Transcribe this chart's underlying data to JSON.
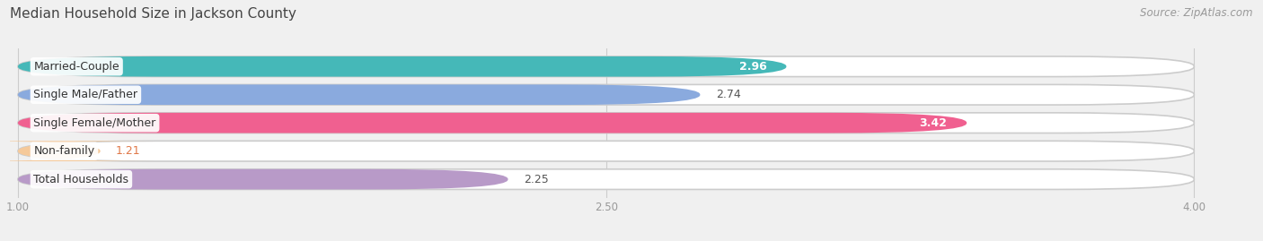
{
  "title": "Median Household Size in Jackson County",
  "source": "Source: ZipAtlas.com",
  "categories": [
    "Married-Couple",
    "Single Male/Father",
    "Single Female/Mother",
    "Non-family",
    "Total Households"
  ],
  "values": [
    2.96,
    2.74,
    3.42,
    1.21,
    2.25
  ],
  "bar_colors": [
    "#45b8b8",
    "#8aaade",
    "#f06090",
    "#f5c99a",
    "#b89ac8"
  ],
  "value_inside": [
    true,
    false,
    true,
    false,
    false
  ],
  "value_colors_outside": [
    "#555555",
    "#555555",
    "#555555",
    "#e07848",
    "#555555"
  ],
  "xmin": 1.0,
  "xmax": 4.0,
  "xticks": [
    1.0,
    2.5,
    4.0
  ],
  "bg_color": "#f0f0f0",
  "bar_bg_color": "#e8e8e8",
  "title_fontsize": 11,
  "label_fontsize": 9,
  "value_fontsize": 9,
  "source_fontsize": 8.5
}
